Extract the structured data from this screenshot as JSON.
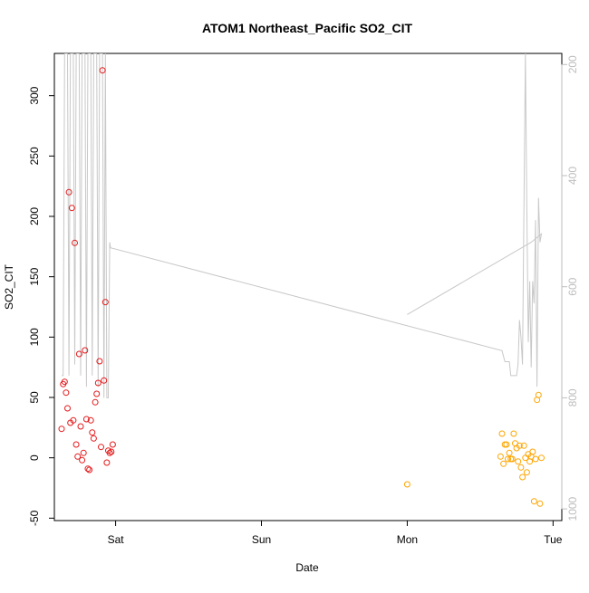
{
  "chart_data": {
    "type": "scatter",
    "title": "ATOM1 Northeast_Pacific SO2_CIT",
    "xlabel": "Date",
    "ylabel": "SO2_CIT",
    "x_ticks": [
      {
        "label": "Sat",
        "day": 1
      },
      {
        "label": "Sun",
        "day": 2
      },
      {
        "label": "Mon",
        "day": 3
      },
      {
        "label": "Tue",
        "day": 4
      }
    ],
    "xlim_days": [
      0.58,
      4.06
    ],
    "ylim": [
      -52,
      335
    ],
    "y_ticks": [
      -50,
      0,
      50,
      100,
      150,
      200,
      250,
      300
    ],
    "right_axis": {
      "ticks": [
        200,
        400,
        600,
        800,
        1000
      ],
      "ylim_reversed": [
        1021,
        180
      ],
      "color": "#bdbdbd"
    },
    "grid": false,
    "series": [
      {
        "color": "#e41a1c",
        "points": [
          [
            0.63,
            24
          ],
          [
            0.64,
            61
          ],
          [
            0.65,
            63
          ],
          [
            0.66,
            54
          ],
          [
            0.67,
            41
          ],
          [
            0.68,
            220
          ],
          [
            0.69,
            29
          ],
          [
            0.7,
            207
          ],
          [
            0.71,
            31
          ],
          [
            0.72,
            178
          ],
          [
            0.73,
            11
          ],
          [
            0.74,
            1
          ],
          [
            0.75,
            86
          ],
          [
            0.76,
            26
          ],
          [
            0.77,
            -2
          ],
          [
            0.78,
            4
          ],
          [
            0.79,
            89
          ],
          [
            0.8,
            32
          ],
          [
            0.81,
            -9
          ],
          [
            0.82,
            -10
          ],
          [
            0.83,
            31
          ],
          [
            0.84,
            21
          ],
          [
            0.85,
            16
          ],
          [
            0.86,
            46
          ],
          [
            0.87,
            53
          ],
          [
            0.88,
            62
          ],
          [
            0.89,
            80
          ],
          [
            0.9,
            9
          ],
          [
            0.91,
            321
          ],
          [
            0.92,
            64
          ],
          [
            0.93,
            129
          ],
          [
            0.94,
            -4
          ],
          [
            0.95,
            6
          ],
          [
            0.96,
            4
          ],
          [
            0.97,
            5
          ],
          [
            0.98,
            11
          ]
        ]
      },
      {
        "color": "#ffa500",
        "points": [
          [
            3.0,
            -22
          ],
          [
            3.64,
            1
          ],
          [
            3.65,
            20
          ],
          [
            3.66,
            -5
          ],
          [
            3.67,
            11
          ],
          [
            3.68,
            11
          ],
          [
            3.69,
            -1
          ],
          [
            3.7,
            4
          ],
          [
            3.71,
            -1
          ],
          [
            3.72,
            -1
          ],
          [
            3.73,
            20
          ],
          [
            3.74,
            12
          ],
          [
            3.75,
            8
          ],
          [
            3.76,
            -3
          ],
          [
            3.77,
            10
          ],
          [
            3.78,
            -8
          ],
          [
            3.79,
            -16
          ],
          [
            3.8,
            10
          ],
          [
            3.81,
            0
          ],
          [
            3.82,
            -12
          ],
          [
            3.83,
            3
          ],
          [
            3.84,
            -3
          ],
          [
            3.85,
            1
          ],
          [
            3.86,
            5
          ],
          [
            3.87,
            -36
          ],
          [
            3.88,
            -1
          ],
          [
            3.89,
            48
          ],
          [
            3.9,
            52
          ],
          [
            3.91,
            -38
          ],
          [
            3.92,
            0
          ]
        ]
      }
    ],
    "line_series": {
      "color": "#c8c8c8",
      "axis": "right",
      "points": [
        [
          0.63,
          760
        ],
        [
          0.64,
          760
        ],
        [
          0.65,
          180
        ],
        [
          0.67,
          180
        ],
        [
          0.68,
          760
        ],
        [
          0.69,
          180
        ],
        [
          0.71,
          180
        ],
        [
          0.72,
          740
        ],
        [
          0.73,
          180
        ],
        [
          0.75,
          180
        ],
        [
          0.76,
          760
        ],
        [
          0.77,
          180
        ],
        [
          0.79,
          180
        ],
        [
          0.8,
          780
        ],
        [
          0.81,
          180
        ],
        [
          0.83,
          180
        ],
        [
          0.84,
          760
        ],
        [
          0.85,
          180
        ],
        [
          0.87,
          180
        ],
        [
          0.88,
          780
        ],
        [
          0.89,
          180
        ],
        [
          0.91,
          180
        ],
        [
          0.92,
          800
        ],
        [
          0.93,
          180
        ],
        [
          0.94,
          800
        ],
        [
          0.95,
          800
        ],
        [
          0.96,
          520
        ],
        [
          0.965,
          530
        ],
        [
          3.65,
          715
        ],
        [
          3.67,
          735
        ],
        [
          3.68,
          735
        ],
        [
          3.7,
          735
        ],
        [
          3.71,
          760
        ],
        [
          3.72,
          760
        ],
        [
          3.75,
          760
        ],
        [
          3.76,
          740
        ],
        [
          3.77,
          660
        ],
        [
          3.78,
          690
        ],
        [
          3.79,
          740
        ],
        [
          3.8,
          460
        ],
        [
          3.81,
          180
        ],
        [
          3.82,
          460
        ],
        [
          3.83,
          700
        ],
        [
          3.84,
          590
        ],
        [
          3.85,
          745
        ],
        [
          3.86,
          590
        ],
        [
          3.87,
          630
        ],
        [
          3.88,
          480
        ],
        [
          3.89,
          780
        ],
        [
          3.9,
          440
        ],
        [
          3.91,
          520
        ],
        [
          3.92,
          505
        ],
        [
          3.85,
          520
        ],
        [
          3.0,
          650
        ]
      ]
    }
  }
}
